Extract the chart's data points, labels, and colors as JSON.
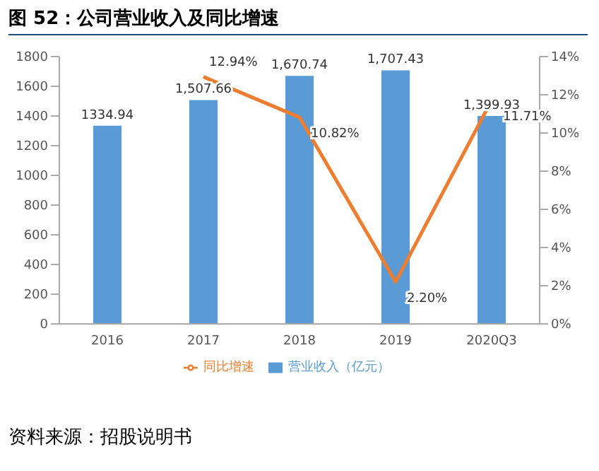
{
  "chart_data": {
    "type": "bar",
    "title": "图 52：公司营业收入及同比增速",
    "annotations": [
      "资料来源：招股说明书"
    ],
    "categories": [
      "2016",
      "2017",
      "2018",
      "2019",
      "2020Q3"
    ],
    "series": [
      {
        "name": "营业收入（亿元）",
        "color": "#5b9bd5",
        "values": [
          1334.94,
          1507.66,
          1670.74,
          1707.43,
          1399.93
        ],
        "value_labels": [
          "1334.94",
          "1,507.66",
          "1,670.74",
          "1,707.43",
          "1,399.93"
        ]
      },
      {
        "name": "同比增速",
        "type": "line",
        "axis": "y2",
        "color": "#ed7d31",
        "values": [
          null,
          12.94,
          10.82,
          2.2,
          11.71
        ],
        "value_labels": [
          null,
          "12.94%",
          "10.82%",
          "2.20%",
          "11.71%"
        ]
      }
    ],
    "ylim": [
      0,
      1800
    ],
    "yticks": [
      0,
      200,
      400,
      600,
      800,
      1000,
      1200,
      1400,
      1600,
      1800
    ],
    "y2lim": [
      0,
      14
    ],
    "y2ticks": [
      {
        "value": 0,
        "label": "0%"
      },
      {
        "value": 2,
        "label": "2%"
      },
      {
        "value": 4,
        "label": "4%"
      },
      {
        "value": 6,
        "label": "6%"
      },
      {
        "value": 8,
        "label": "8%"
      },
      {
        "value": 10,
        "label": "10%"
      },
      {
        "value": 12,
        "label": "12%"
      },
      {
        "value": 14,
        "label": "14%"
      }
    ],
    "data_labels": true,
    "legend": "bottom",
    "grid": false,
    "marker": "none",
    "line_style": "solid"
  }
}
